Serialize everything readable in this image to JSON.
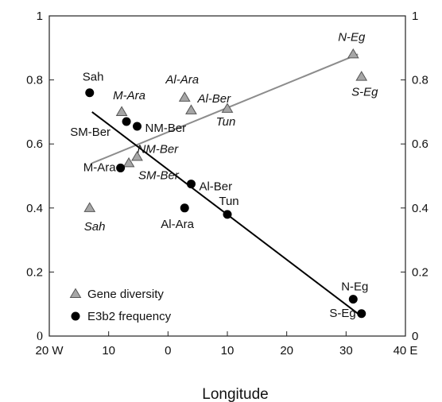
{
  "chart_data": {
    "type": "scatter",
    "xlabel": "Longitude",
    "xlim": [
      -20,
      40
    ],
    "ylim": [
      0,
      1
    ],
    "x_ticks": [
      {
        "value": -20,
        "label": "20 W"
      },
      {
        "value": -10,
        "label": "10"
      },
      {
        "value": 0,
        "label": "0"
      },
      {
        "value": 10,
        "label": "10"
      },
      {
        "value": 20,
        "label": "20"
      },
      {
        "value": 30,
        "label": "30"
      },
      {
        "value": 40,
        "label": "40 E"
      }
    ],
    "y_ticks_left": [
      "0",
      "0.2",
      "0.4",
      "0.6",
      "0.8",
      "1"
    ],
    "y_ticks_right": [
      "0",
      "0.2",
      "0.4",
      "0.6",
      "0.8",
      "1"
    ],
    "grid": false,
    "legend_position": "bottom-left",
    "series": [
      {
        "name": "Gene diversity",
        "marker": "triangle",
        "color": "#a6a6a6",
        "label_style": "italic",
        "points": [
          {
            "label": "N-Eg",
            "x": 31.2,
            "y": 0.88
          },
          {
            "label": "S-Eg",
            "x": 32.6,
            "y": 0.81
          },
          {
            "label": "Al-Ara",
            "x": 2.8,
            "y": 0.745
          },
          {
            "label": "Al-Ber",
            "x": 3.9,
            "y": 0.705
          },
          {
            "label": "Tun",
            "x": 10.0,
            "y": 0.71
          },
          {
            "label": "M-Ara",
            "x": -7.8,
            "y": 0.7
          },
          {
            "label": "NM-Ber",
            "x": -5.2,
            "y": 0.56
          },
          {
            "label": "SM-Ber",
            "x": -6.6,
            "y": 0.54
          },
          {
            "label": "Sah",
            "x": -13.2,
            "y": 0.4
          }
        ],
        "trendline": {
          "x": [
            -12.8,
            32.0
          ],
          "y": [
            0.54,
            0.88
          ],
          "color": "#8c8c8c"
        }
      },
      {
        "name": "E3b2 frequency",
        "marker": "circle",
        "color": "#000000",
        "label_style": "normal",
        "points": [
          {
            "label": "Sah",
            "x": -13.2,
            "y": 0.76
          },
          {
            "label": "SM-Ber",
            "x": -7.0,
            "y": 0.67
          },
          {
            "label": "NM-Ber",
            "x": -5.2,
            "y": 0.655
          },
          {
            "label": "M-Ara",
            "x": -8.0,
            "y": 0.525
          },
          {
            "label": "Al-Ber",
            "x": 3.9,
            "y": 0.475
          },
          {
            "label": "Al-Ara",
            "x": 2.8,
            "y": 0.4
          },
          {
            "label": "Tun",
            "x": 10.0,
            "y": 0.38
          },
          {
            "label": "N-Eg",
            "x": 31.2,
            "y": 0.115
          },
          {
            "label": "S-Eg",
            "x": 32.6,
            "y": 0.07
          }
        ],
        "trendline": {
          "x": [
            -12.8,
            32.0
          ],
          "y": [
            0.7,
            0.07
          ],
          "color": "#000000"
        }
      }
    ]
  }
}
